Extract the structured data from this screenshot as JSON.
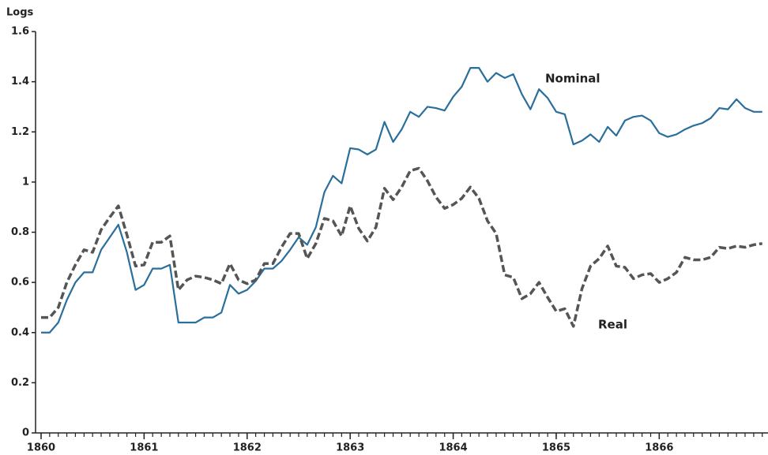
{
  "chart_data": {
    "type": "line",
    "y_label": "Logs",
    "annotations": [
      "Nominal",
      "Real"
    ],
    "x": [
      1860,
      1860.083,
      1860.167,
      1860.25,
      1860.333,
      1860.417,
      1860.5,
      1860.583,
      1860.667,
      1860.75,
      1860.833,
      1860.917,
      1861,
      1861.083,
      1861.167,
      1861.25,
      1861.333,
      1861.417,
      1861.5,
      1861.583,
      1861.667,
      1861.75,
      1861.833,
      1861.917,
      1862,
      1862.083,
      1862.167,
      1862.25,
      1862.333,
      1862.417,
      1862.5,
      1862.583,
      1862.667,
      1862.75,
      1862.833,
      1862.917,
      1863,
      1863.083,
      1863.167,
      1863.25,
      1863.333,
      1863.417,
      1863.5,
      1863.583,
      1863.667,
      1863.75,
      1863.833,
      1863.917,
      1864,
      1864.083,
      1864.167,
      1864.25,
      1864.333,
      1864.417,
      1864.5,
      1864.583,
      1864.667,
      1864.75,
      1864.833,
      1864.917,
      1865,
      1865.083,
      1865.167,
      1865.25,
      1865.333,
      1865.417,
      1865.5,
      1865.583,
      1865.667,
      1865.75,
      1865.833,
      1865.917,
      1866,
      1866.083,
      1866.167,
      1866.25,
      1866.333,
      1866.417,
      1866.5,
      1866.583,
      1866.667,
      1866.75,
      1866.833,
      1866.917,
      1867
    ],
    "series": [
      {
        "name": "Nominal",
        "color": "#2a6f9b",
        "dashed": false,
        "values": [
          0.4,
          0.4,
          0.44,
          0.53,
          0.6,
          0.64,
          0.64,
          0.73,
          0.78,
          0.83,
          0.72,
          0.57,
          0.59,
          0.655,
          0.655,
          0.67,
          0.44,
          0.44,
          0.44,
          0.46,
          0.46,
          0.48,
          0.59,
          0.555,
          0.57,
          0.605,
          0.655,
          0.655,
          0.685,
          0.73,
          0.78,
          0.75,
          0.82,
          0.96,
          1.025,
          0.995,
          1.135,
          1.13,
          1.11,
          1.13,
          1.24,
          1.16,
          1.21,
          1.28,
          1.26,
          1.3,
          1.295,
          1.285,
          1.34,
          1.38,
          1.455,
          1.455,
          1.4,
          1.435,
          1.415,
          1.43,
          1.35,
          1.29,
          1.37,
          1.335,
          1.28,
          1.27,
          1.15,
          1.165,
          1.19,
          1.16,
          1.22,
          1.185,
          1.245,
          1.26,
          1.265,
          1.245,
          1.195,
          1.18,
          1.19,
          1.21,
          1.225,
          1.235,
          1.255,
          1.295,
          1.29,
          1.33,
          1.295,
          1.28,
          1.28
        ]
      },
      {
        "name": "Real",
        "color": "#555555",
        "dashed": true,
        "values": [
          0.46,
          0.46,
          0.5,
          0.6,
          0.67,
          0.73,
          0.72,
          0.81,
          0.86,
          0.905,
          0.79,
          0.665,
          0.67,
          0.76,
          0.76,
          0.785,
          0.57,
          0.61,
          0.625,
          0.62,
          0.61,
          0.595,
          0.675,
          0.61,
          0.595,
          0.61,
          0.675,
          0.675,
          0.74,
          0.795,
          0.795,
          0.695,
          0.755,
          0.855,
          0.845,
          0.785,
          0.905,
          0.815,
          0.765,
          0.82,
          0.975,
          0.93,
          0.98,
          1.045,
          1.055,
          1.005,
          0.94,
          0.895,
          0.91,
          0.935,
          0.98,
          0.935,
          0.845,
          0.795,
          0.63,
          0.62,
          0.535,
          0.555,
          0.6,
          0.54,
          0.485,
          0.495,
          0.425,
          0.575,
          0.665,
          0.695,
          0.745,
          0.665,
          0.66,
          0.615,
          0.63,
          0.635,
          0.6,
          0.615,
          0.64,
          0.7,
          0.69,
          0.69,
          0.7,
          0.74,
          0.735,
          0.745,
          0.74,
          0.75,
          0.755
        ]
      }
    ],
    "xlim": [
      1860,
      1867.025
    ],
    "xticks": [
      1860,
      1861,
      1862,
      1863,
      1864,
      1865,
      1866
    ],
    "ylim": [
      0,
      1.6
    ],
    "yticks": [
      0,
      0.2,
      0.4,
      0.6,
      0.8,
      1,
      1.2,
      1.4,
      1.6
    ],
    "grid": false
  }
}
